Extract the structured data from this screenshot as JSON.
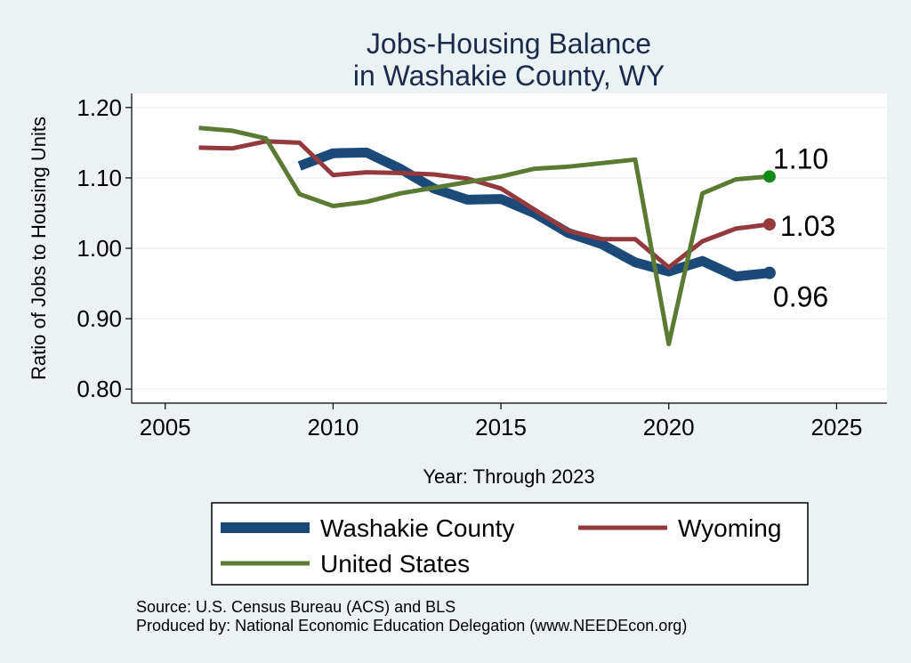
{
  "chart_data": {
    "type": "line",
    "title": [
      "Jobs-Housing Balance",
      "in Washakie County, WY"
    ],
    "xlabel": "Year: Through 2023",
    "ylabel": "Ratio of Jobs to Housing Units",
    "xlim": [
      2004,
      2026.5
    ],
    "ylim": [
      0.78,
      1.22
    ],
    "x_ticks": [
      2005,
      2010,
      2015,
      2020,
      2025
    ],
    "y_ticks": [
      0.8,
      0.9,
      1.0,
      1.1,
      1.2
    ],
    "y_tick_labels": [
      "0.80",
      "0.90",
      "1.00",
      "1.10",
      "1.20"
    ],
    "grid": true,
    "series": [
      {
        "name": "Washakie County",
        "color": "#1b4a78",
        "x": [
          2009,
          2010,
          2011,
          2012,
          2013,
          2014,
          2015,
          2016,
          2017,
          2018,
          2019,
          2020,
          2021,
          2022,
          2023
        ],
        "values": [
          1.117,
          1.135,
          1.136,
          1.113,
          1.085,
          1.069,
          1.07,
          1.05,
          1.022,
          1.006,
          0.98,
          0.967,
          0.982,
          0.96,
          0.965
        ],
        "end_label": "0.96",
        "end_marker_color": "#1b4a78"
      },
      {
        "name": "Wyoming",
        "color": "#943a3e",
        "x": [
          2006,
          2007,
          2008,
          2009,
          2010,
          2011,
          2012,
          2013,
          2014,
          2015,
          2016,
          2017,
          2018,
          2019,
          2020,
          2021,
          2022,
          2023
        ],
        "values": [
          1.143,
          1.142,
          1.152,
          1.15,
          1.104,
          1.108,
          1.107,
          1.105,
          1.099,
          1.085,
          1.055,
          1.025,
          1.013,
          1.013,
          0.973,
          1.01,
          1.028,
          1.034
        ],
        "end_label": "1.03",
        "end_marker_color": "#943a3e"
      },
      {
        "name": "United States",
        "color": "#5b7a33",
        "x": [
          2006,
          2007,
          2008,
          2009,
          2010,
          2011,
          2012,
          2013,
          2014,
          2015,
          2016,
          2017,
          2018,
          2019,
          2020,
          2021,
          2022,
          2023
        ],
        "values": [
          1.171,
          1.167,
          1.156,
          1.077,
          1.06,
          1.066,
          1.078,
          1.086,
          1.094,
          1.102,
          1.113,
          1.116,
          1.121,
          1.126,
          0.864,
          1.078,
          1.098,
          1.102
        ],
        "end_label": "1.10",
        "end_marker_color": "#138a18"
      }
    ],
    "legend": {
      "position": "bottom",
      "entries": [
        "Washakie County",
        "Wyoming",
        "United States"
      ]
    },
    "source_lines": [
      "Source: U.S. Census Bureau (ACS) and BLS",
      "Produced by: National Economic Education Delegation (www.NEEDEcon.org)"
    ]
  }
}
